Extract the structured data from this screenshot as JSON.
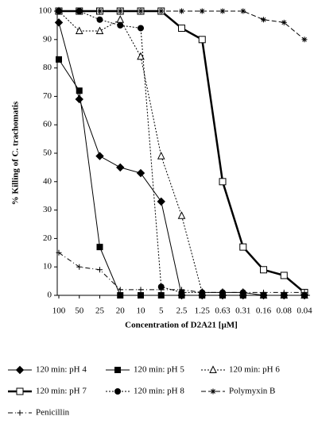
{
  "chart_data": {
    "type": "line",
    "y_label": "% Killing of C. trachomatis",
    "x_label": "Concentration of D2A21 [µM]",
    "categories": [
      "100",
      "50",
      "25",
      "20",
      "10",
      "5",
      "2.5",
      "1.25",
      "0.63",
      "0.31",
      "0.16",
      "0.08",
      "0.04"
    ],
    "ylim": [
      0,
      100
    ],
    "yticks": [
      0,
      10,
      20,
      30,
      40,
      50,
      60,
      70,
      80,
      90,
      100
    ],
    "grid": false,
    "series": [
      {
        "name": "120 min: pH 4",
        "color": "#000000",
        "marker": "diamond",
        "dash": "solid",
        "values": [
          96,
          69,
          49,
          45,
          43,
          33,
          0,
          0,
          0,
          0,
          0,
          0,
          0
        ]
      },
      {
        "name": "120 min: pH 5",
        "color": "#000000",
        "marker": "square",
        "dash": "solid",
        "values": [
          83,
          72,
          17,
          0,
          0,
          0,
          0,
          0,
          0,
          0,
          0,
          0,
          0
        ]
      },
      {
        "name": "120 min: pH 6",
        "color": "#000000",
        "marker": "open-triangle",
        "dash": "dotted",
        "values": [
          100,
          93,
          93,
          97,
          84,
          49,
          28,
          1,
          1,
          1,
          0,
          0,
          0
        ]
      },
      {
        "name": "120 min: pH 7",
        "color": "#000000",
        "marker": "open-square",
        "dash": "thick",
        "values": [
          100,
          100,
          100,
          100,
          100,
          100,
          94,
          90,
          40,
          17,
          9,
          7,
          1
        ]
      },
      {
        "name": "120 min: pH 8",
        "color": "#000000",
        "marker": "circle",
        "dash": "dotted",
        "values": [
          100,
          100,
          97,
          95,
          94,
          3,
          1,
          1,
          1,
          1,
          0,
          0,
          0
        ]
      },
      {
        "name": "Polymyxin B",
        "color": "#000000",
        "marker": "asterisk",
        "dash": "dashed",
        "values": [
          100,
          100,
          100,
          100,
          100,
          100,
          100,
          100,
          100,
          100,
          97,
          96,
          90
        ]
      },
      {
        "name": "Penicillin",
        "color": "#000000",
        "marker": "plus",
        "dash": "dashdot",
        "values": [
          15,
          10,
          9,
          2,
          2,
          2,
          2,
          1,
          1,
          1,
          1,
          1,
          1
        ]
      }
    ]
  }
}
